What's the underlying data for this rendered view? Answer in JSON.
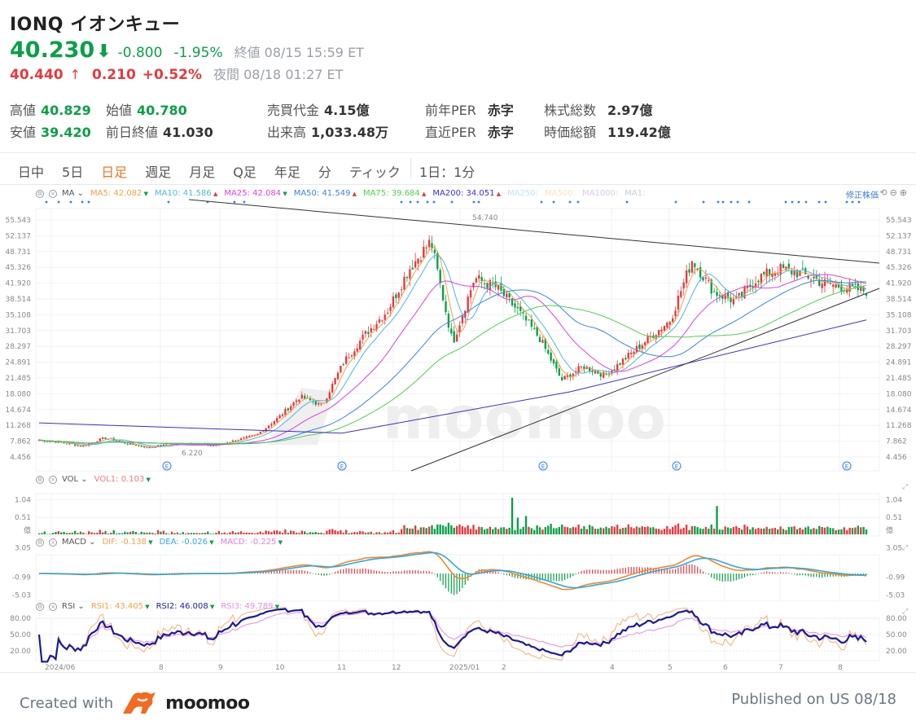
{
  "header": {
    "ticker": "IONQ",
    "name": "イオンキュー",
    "price": "40.230",
    "arrow": "⬇",
    "change": "-0.800",
    "change_pct": "-1.95%",
    "close_label": "終値 08/15 15:59 ET",
    "ah_price": "40.440",
    "ah_arrow": "↑",
    "ah_change": "0.210",
    "ah_change_pct": "+0.52%",
    "ah_label": "夜間 08/18 01:27 ET"
  },
  "stats": [
    {
      "label": "高値",
      "value": "40.829",
      "color": "green"
    },
    {
      "label": "安値",
      "value": "39.420",
      "color": "green"
    },
    {
      "label": "始値",
      "value": "40.780",
      "color": "green"
    },
    {
      "label": "前日終値",
      "value": "41.030",
      "color": "dark"
    },
    {
      "label": "売買代金",
      "value": "4.15億",
      "color": "dark"
    },
    {
      "label": "出来高",
      "value": "1,033.48万",
      "color": "dark"
    },
    {
      "label": "前年PER",
      "value": "赤字",
      "color": "dark"
    },
    {
      "label": "直近PER",
      "value": "赤字",
      "color": "dark"
    },
    {
      "label": "株式総数",
      "value": "2.97億",
      "color": "dark"
    },
    {
      "label": "時価総額",
      "value": "119.42億",
      "color": "dark"
    }
  ],
  "tabs": [
    "日中",
    "5日",
    "日足",
    "週足",
    "月足",
    "Q足",
    "年足",
    "分",
    "ティック"
  ],
  "active_tab": "日足",
  "tab_extra": "1日：1分",
  "adjusted_label": "修正株価",
  "ma_legend": {
    "name": "MA",
    "items": [
      {
        "label": "MA5:",
        "value": "42.082",
        "color": "#f5a045",
        "dir": "down"
      },
      {
        "label": "MA10:",
        "value": "41.586",
        "color": "#4fb6e8",
        "dir": "up"
      },
      {
        "label": "MA25:",
        "value": "42.084",
        "color": "#e040e0",
        "dir": "down"
      },
      {
        "label": "MA50:",
        "value": "41.549",
        "color": "#3a86e0",
        "dir": "up"
      },
      {
        "label": "MA75:",
        "value": "39.684",
        "color": "#4fd04f",
        "dir": "up"
      },
      {
        "label": "MA200:",
        "value": "34.051",
        "color": "#3b2fd0",
        "dir": "up"
      },
      {
        "label": "MA250:",
        "value": "",
        "color": "#b8e8f5",
        "dir": ""
      },
      {
        "label": "MA500:",
        "value": "",
        "color": "#fbe2b8",
        "dir": ""
      },
      {
        "label": "MA1000:",
        "value": "",
        "color": "#d8c8f0",
        "dir": ""
      },
      {
        "label": "MA1:",
        "value": "",
        "color": "#cccccc",
        "dir": ""
      }
    ]
  },
  "vol_legend": {
    "name": "VOL",
    "items": [
      {
        "label": "VOL1:",
        "value": "0.103",
        "color": "#f47a7a",
        "dir": "down"
      }
    ]
  },
  "macd_legend": {
    "name": "MACD",
    "items": [
      {
        "label": "DIF:",
        "value": "-0.138",
        "color": "#f5a045",
        "dir": "down"
      },
      {
        "label": "DEA:",
        "value": "-0.026",
        "color": "#2fa8e0",
        "dir": "down"
      },
      {
        "label": "MACD:",
        "value": "-0.225",
        "color": "#e87ae8",
        "dir": "down"
      }
    ]
  },
  "rsi_legend": {
    "name": "RSI",
    "items": [
      {
        "label": "RSI1:",
        "value": "43.405",
        "color": "#f5a045",
        "dir": "down"
      },
      {
        "label": "RSI2:",
        "value": "46.008",
        "color": "#1a1a9e",
        "dir": "down"
      },
      {
        "label": "RSI3:",
        "value": "49.789",
        "color": "#e88ae8",
        "dir": "down"
      }
    ]
  },
  "footer": {
    "created": "Created with",
    "brand": "moomoo",
    "published": "Published on US 08/18"
  },
  "chart_data": [
    {
      "type": "candlestick",
      "title": "IONQ 日足",
      "y_ticks": [
        "55.543",
        "52.137",
        "48.731",
        "45.326",
        "41.920",
        "38.514",
        "35.108",
        "31.703",
        "28.297",
        "24.891",
        "21.485",
        "18.080",
        "14.674",
        "11.268",
        "7.862",
        "4.456"
      ],
      "ylim": [
        4.456,
        55.543
      ],
      "x_ticks": [
        "2024/06",
        "8",
        "9",
        "10",
        "11",
        "12",
        "2025/01",
        "2",
        "4",
        "5",
        "6",
        "7",
        "8"
      ],
      "annotations": [
        {
          "text": "54.740",
          "type": "high"
        },
        {
          "text": "6.220",
          "type": "low"
        }
      ],
      "close_path": [
        [
          "2024/05",
          8.1
        ],
        [
          "2024/06",
          7.6
        ],
        [
          "2024/06b",
          6.8
        ],
        [
          "2024/07",
          8.6
        ],
        [
          "2024/07b",
          7.4
        ],
        [
          "2024/08",
          6.5
        ],
        [
          "2024/08b",
          7.2
        ],
        [
          "2024/09",
          7.4
        ],
        [
          "2024/09b",
          6.9
        ],
        [
          "2024/10",
          8.0
        ],
        [
          "2024/10b",
          9.2
        ],
        [
          "2024/10c",
          13.0
        ],
        [
          "2024/11",
          17.5
        ],
        [
          "2024/11b",
          15.5
        ],
        [
          "2024/11c",
          25.0
        ],
        [
          "2024/12",
          31.0
        ],
        [
          "2024/12b",
          36.0
        ],
        [
          "2024/12c",
          45.0
        ],
        [
          "2025/01",
          51.0
        ],
        [
          "2025/01b",
          29.0
        ],
        [
          "2025/01c",
          43.0
        ],
        [
          "2025/02",
          41.0
        ],
        [
          "2025/02b",
          36.0
        ],
        [
          "2025/02c",
          30.0
        ],
        [
          "2025/03",
          21.0
        ],
        [
          "2025/03b",
          24.0
        ],
        [
          "2025/04",
          22.0
        ],
        [
          "2025/04b",
          26.0
        ],
        [
          "2025/05",
          30.0
        ],
        [
          "2025/05b",
          34.0
        ],
        [
          "2025/05c",
          47.0
        ],
        [
          "2025/06",
          40.0
        ],
        [
          "2025/06b",
          38.0
        ],
        [
          "2025/06c",
          43.0
        ],
        [
          "2025/07",
          45.0
        ],
        [
          "2025/07b",
          44.0
        ],
        [
          "2025/07c",
          42.0
        ],
        [
          "2025/08",
          41.0
        ],
        [
          "2025/08b",
          40.23
        ]
      ],
      "moving_averages": {
        "MA5": 42.082,
        "MA10": 41.586,
        "MA25": 42.084,
        "MA50": 41.549,
        "MA75": 39.684,
        "MA200": 34.051
      },
      "trendlines": [
        {
          "name": "upper-resistance",
          "from": [
            "2024/08",
            57.5
          ],
          "to": [
            "2025/08",
            46.5
          ]
        },
        {
          "name": "lower-support",
          "from": [
            "2024/11",
            4.0
          ],
          "to": [
            "2025/08",
            41.0
          ]
        }
      ]
    },
    {
      "type": "bar",
      "title": "VOL",
      "y_ticks": [
        "1.04",
        "0.51",
        "億"
      ],
      "last": 0.103,
      "peaks": [
        {
          "x": "2025/01",
          "value": 1.1
        },
        {
          "x": "2025/05",
          "value": 0.85
        }
      ]
    },
    {
      "type": "line",
      "title": "MACD",
      "y_ticks": [
        "3.05",
        "-0.99",
        "-5.03"
      ],
      "series": [
        {
          "name": "DIF",
          "last": -0.138
        },
        {
          "name": "DEA",
          "last": -0.026
        },
        {
          "name": "MACD",
          "last": -0.225
        }
      ]
    },
    {
      "type": "line",
      "title": "RSI",
      "y_ticks": [
        "80.00",
        "50.00",
        "20.00"
      ],
      "series": [
        {
          "name": "RSI1",
          "last": 43.405
        },
        {
          "name": "RSI2",
          "last": 46.008
        },
        {
          "name": "RSI3",
          "last": 49.789
        }
      ]
    }
  ]
}
